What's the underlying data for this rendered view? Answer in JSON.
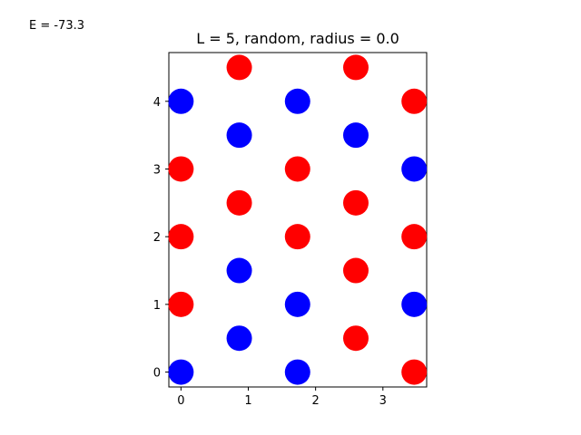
{
  "energy_text": "E = -73.3",
  "chart_data": {
    "type": "scatter",
    "title": "L = 5, random, radius = 0.0",
    "xlabel": "",
    "ylabel": "",
    "xlim": [
      -0.18,
      3.65
    ],
    "ylim": [
      -0.22,
      4.72
    ],
    "xticks": [
      0,
      1,
      2,
      3
    ],
    "yticks": [
      0,
      1,
      2,
      3,
      4
    ],
    "grid": false,
    "legend": "none",
    "colors": {
      "red": "#ff0000",
      "blue": "#0000ff"
    },
    "points": [
      {
        "x": 0.0,
        "y": 0.0,
        "color": "blue"
      },
      {
        "x": 1.732,
        "y": 0.0,
        "color": "blue"
      },
      {
        "x": 3.464,
        "y": 0.0,
        "color": "red"
      },
      {
        "x": 0.866,
        "y": 0.5,
        "color": "blue"
      },
      {
        "x": 2.598,
        "y": 0.5,
        "color": "red"
      },
      {
        "x": 0.0,
        "y": 1.0,
        "color": "red"
      },
      {
        "x": 1.732,
        "y": 1.0,
        "color": "blue"
      },
      {
        "x": 3.464,
        "y": 1.0,
        "color": "blue"
      },
      {
        "x": 0.866,
        "y": 1.5,
        "color": "blue"
      },
      {
        "x": 2.598,
        "y": 1.5,
        "color": "red"
      },
      {
        "x": 0.0,
        "y": 2.0,
        "color": "red"
      },
      {
        "x": 1.732,
        "y": 2.0,
        "color": "red"
      },
      {
        "x": 3.464,
        "y": 2.0,
        "color": "red"
      },
      {
        "x": 0.866,
        "y": 2.5,
        "color": "red"
      },
      {
        "x": 2.598,
        "y": 2.5,
        "color": "red"
      },
      {
        "x": 0.0,
        "y": 3.0,
        "color": "red"
      },
      {
        "x": 1.732,
        "y": 3.0,
        "color": "red"
      },
      {
        "x": 3.464,
        "y": 3.0,
        "color": "blue"
      },
      {
        "x": 0.866,
        "y": 3.5,
        "color": "blue"
      },
      {
        "x": 2.598,
        "y": 3.5,
        "color": "blue"
      },
      {
        "x": 0.0,
        "y": 4.0,
        "color": "blue"
      },
      {
        "x": 1.732,
        "y": 4.0,
        "color": "blue"
      },
      {
        "x": 3.464,
        "y": 4.0,
        "color": "red"
      },
      {
        "x": 0.866,
        "y": 4.5,
        "color": "red"
      },
      {
        "x": 2.598,
        "y": 4.5,
        "color": "red"
      }
    ]
  }
}
